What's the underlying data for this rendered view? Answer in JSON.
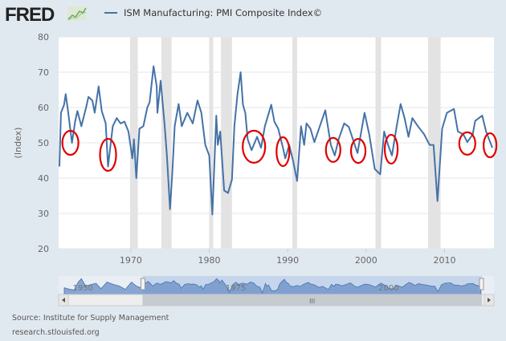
{
  "header": {
    "logo_text": "FRED",
    "legend_label": "ISM Manufacturing: PMI Composite Index©"
  },
  "footer": {
    "source": "Source: Institute for Supply Management",
    "site": "research.stlouisfed.org"
  },
  "colors": {
    "background": "#e1e9f0",
    "series": "#4572a7",
    "recession": "#e3e3e3",
    "annotation": "#e00000"
  },
  "chart_data": {
    "type": "line",
    "title": "",
    "xlabel": "",
    "ylabel": "(Index)",
    "xlim": [
      1960.8,
      2016.3
    ],
    "ylim": [
      20,
      80
    ],
    "grid": true,
    "legend_placement": "top",
    "x_ticks": [
      "1970",
      "1980",
      "1990",
      "2000",
      "2010"
    ],
    "y_ticks": [
      "20",
      "30",
      "40",
      "50",
      "60",
      "70",
      "80"
    ],
    "series": [
      {
        "name": "ISM Manufacturing: PMI Composite Index©",
        "x": [
          1960.9,
          1961.1,
          1961.5,
          1961.7,
          1962.0,
          1962.5,
          1962.9,
          1963.2,
          1963.7,
          1964.3,
          1964.6,
          1965.1,
          1965.4,
          1965.9,
          1966.3,
          1966.8,
          1967.1,
          1967.7,
          1968.2,
          1968.7,
          1969.2,
          1969.7,
          1970.2,
          1970.4,
          1970.7,
          1971.1,
          1971.6,
          1972.1,
          1972.4,
          1972.9,
          1973.3,
          1973.4,
          1973.8,
          1974.3,
          1974.6,
          1975.0,
          1975.3,
          1975.6,
          1976.1,
          1976.5,
          1977.2,
          1977.9,
          1978.5,
          1979.0,
          1979.5,
          1980.0,
          1980.4,
          1980.9,
          1981.1,
          1981.4,
          1981.9,
          1982.4,
          1982.9,
          1983.2,
          1983.6,
          1984.0,
          1984.3,
          1984.6,
          1984.9,
          1985.4,
          1986.1,
          1986.6,
          1987.1,
          1987.9,
          1988.3,
          1988.8,
          1989.4,
          1989.7,
          1990.2,
          1990.7,
          1991.2,
          1991.7,
          1992.1,
          1992.4,
          1992.9,
          1993.4,
          1994.1,
          1994.8,
          1995.5,
          1996.0,
          1996.5,
          1997.2,
          1997.8,
          1998.9,
          1999.8,
          2000.4,
          2001.1,
          2001.8,
          2002.3,
          2002.8,
          2003.3,
          2003.9,
          2004.4,
          2004.9,
          2005.4,
          2005.9,
          2006.6,
          2007.4,
          2008.1,
          2008.6,
          2009.1,
          2009.7,
          2010.3,
          2011.2,
          2011.7,
          2012.4,
          2012.9,
          2013.6,
          2013.9,
          2014.8,
          2015.3,
          2016.1
        ],
        "values": [
          43.3,
          58.5,
          60.8,
          63.8,
          59,
          50,
          56,
          59,
          54.7,
          60,
          63,
          62,
          58.5,
          66,
          59,
          55.5,
          43.3,
          54.7,
          57,
          55.5,
          56,
          53.2,
          45.6,
          51,
          40,
          54,
          54.7,
          60,
          61.5,
          71.7,
          66,
          58.5,
          67.6,
          55.5,
          46.4,
          31.2,
          41.8,
          54.7,
          61,
          54.7,
          58.5,
          55.5,
          62,
          58.5,
          49.4,
          46.4,
          29.7,
          57.7,
          49.4,
          53.2,
          36.5,
          35.8,
          39.6,
          54.7,
          63.8,
          70,
          60.8,
          58.5,
          51,
          47.9,
          51.7,
          48.6,
          54.7,
          60.8,
          56,
          54,
          48.6,
          45.6,
          49.4,
          44.8,
          39.2,
          54.7,
          49.4,
          55.5,
          54,
          50.2,
          54.7,
          59.2,
          49.4,
          46.4,
          51,
          55.5,
          54.5,
          47.1,
          58.5,
          52.4,
          42.6,
          41.1,
          53.2,
          49.4,
          46.4,
          54.7,
          61,
          57,
          51.7,
          57,
          54.7,
          52.4,
          49.4,
          49.4,
          33.5,
          54,
          58.5,
          59.6,
          53.2,
          52.4,
          50.2,
          52.4,
          56.2,
          57.7,
          53.2,
          48.6
        ]
      }
    ],
    "recessions": [
      [
        1969.9,
        1970.9
      ],
      [
        1973.9,
        1975.2
      ],
      [
        1980.0,
        1980.5
      ],
      [
        1981.5,
        1982.9
      ],
      [
        1990.6,
        1991.2
      ],
      [
        2001.2,
        2001.9
      ],
      [
        2007.9,
        2009.5
      ]
    ],
    "annotations": [
      {
        "shape": "ellipse",
        "x": 1962.3,
        "y": 50
      },
      {
        "shape": "ellipse",
        "x": 1967.1,
        "y": 46.6
      },
      {
        "shape": "ellipse",
        "x": 1985.7,
        "y": 48.9
      },
      {
        "shape": "ellipse",
        "x": 1989.4,
        "y": 47.5
      },
      {
        "shape": "ellipse",
        "x": 1995.8,
        "y": 48
      },
      {
        "shape": "ellipse",
        "x": 1999.0,
        "y": 47.7
      },
      {
        "shape": "ellipse",
        "x": 2003.2,
        "y": 48.2
      },
      {
        "shape": "ellipse",
        "x": 2012.9,
        "y": 49.8
      },
      {
        "shape": "ellipse",
        "x": 2015.8,
        "y": 49.3
      }
    ],
    "navigator": {
      "x_ticks": [
        "1950",
        "1975",
        "2000"
      ],
      "range": [
        1948,
        2016.3
      ],
      "selected": [
        1960.8,
        2016.3
      ],
      "early_x": [
        1948,
        1949,
        1949.6,
        1950.3,
        1950.8,
        1951.5,
        1952.5,
        1953.2,
        1954,
        1955,
        1956,
        1957,
        1958,
        1959,
        1959.8,
        1960.5
      ],
      "early_values": [
        45,
        40,
        38,
        62,
        72,
        50,
        55,
        58,
        42,
        62,
        55,
        50,
        40,
        62,
        50,
        45
      ]
    }
  }
}
